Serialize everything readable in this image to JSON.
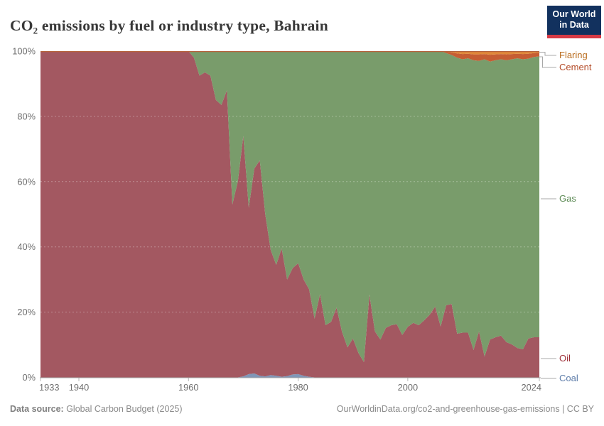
{
  "header": {
    "title": "CO₂ emissions by fuel or industry type, Bahrain"
  },
  "logo": {
    "line1": "Our World",
    "line2": "in Data",
    "bg_color": "#12315e",
    "bar_color": "#d73a45"
  },
  "footer": {
    "source_label": "Data source:",
    "source_value": " Global Carbon Budget (2025)",
    "credit": "OurWorldinData.org/co2-and-greenhouse-gas-emissions | CC BY"
  },
  "chart_data": {
    "type": "area",
    "stacked": "percent",
    "title": "CO₂ emissions by fuel or industry type, Bahrain",
    "xlabel": "",
    "ylabel": "",
    "ylim": [
      0,
      100
    ],
    "grid_values": [
      20,
      40,
      60,
      80
    ],
    "legend_position": "right",
    "xticks": [
      1933,
      1940,
      1960,
      1980,
      2000,
      2024
    ],
    "yticks": [
      {
        "label": "0%",
        "value": 0
      },
      {
        "label": "20%",
        "value": 20
      },
      {
        "label": "40%",
        "value": 40
      },
      {
        "label": "60%",
        "value": 60
      },
      {
        "label": "80%",
        "value": 80
      },
      {
        "label": "100%",
        "value": 100
      }
    ],
    "x": [
      1933,
      1934,
      1935,
      1936,
      1937,
      1938,
      1939,
      1940,
      1941,
      1942,
      1943,
      1944,
      1945,
      1946,
      1947,
      1948,
      1949,
      1950,
      1951,
      1952,
      1953,
      1954,
      1955,
      1956,
      1957,
      1958,
      1959,
      1960,
      1961,
      1962,
      1963,
      1964,
      1965,
      1966,
      1967,
      1968,
      1969,
      1970,
      1971,
      1972,
      1973,
      1974,
      1975,
      1976,
      1977,
      1978,
      1979,
      1980,
      1981,
      1982,
      1983,
      1984,
      1985,
      1986,
      1987,
      1988,
      1989,
      1990,
      1991,
      1992,
      1993,
      1994,
      1995,
      1996,
      1997,
      1998,
      1999,
      2000,
      2001,
      2002,
      2003,
      2004,
      2005,
      2006,
      2007,
      2008,
      2009,
      2010,
      2011,
      2012,
      2013,
      2014,
      2015,
      2016,
      2017,
      2018,
      2019,
      2020,
      2021,
      2022,
      2023,
      2024
    ],
    "series": [
      {
        "name": "Coal",
        "color": "#8096b7",
        "label_color": "#5d7ca9",
        "values": [
          0,
          0,
          0,
          0,
          0,
          0,
          0,
          0,
          0,
          0,
          0,
          0,
          0,
          0,
          0,
          0,
          0,
          0,
          0,
          0,
          0,
          0,
          0,
          0,
          0,
          0,
          0,
          0,
          0,
          0,
          0,
          0,
          0,
          0,
          0,
          0,
          0,
          0.3,
          1,
          1.2,
          0.5,
          0.3,
          0.7,
          0.5,
          0.2,
          0.4,
          0.9,
          1,
          0.5,
          0.2,
          0,
          0,
          0,
          0,
          0,
          0,
          0,
          0,
          0,
          0,
          0,
          0,
          0,
          0,
          0,
          0,
          0,
          0,
          0,
          0,
          0,
          0,
          0,
          0,
          0,
          0,
          0,
          0,
          0,
          0,
          0,
          0,
          0,
          0,
          0,
          0,
          0,
          0,
          0,
          0,
          0,
          0
        ]
      },
      {
        "name": "Oil",
        "color": "#a35861",
        "label_color": "#9e3038",
        "values": [
          100,
          100,
          100,
          100,
          100,
          100,
          100,
          100,
          100,
          100,
          100,
          100,
          100,
          100,
          100,
          100,
          100,
          100,
          100,
          100,
          100,
          100,
          100,
          100,
          100,
          100,
          100,
          100,
          98,
          92.5,
          93.5,
          92.5,
          85,
          83.5,
          88,
          53,
          60,
          73.7,
          51,
          62.8,
          66,
          49.7,
          38.3,
          34,
          39.3,
          29.6,
          32.6,
          34,
          29.5,
          26.8,
          18,
          25.5,
          16,
          17,
          21.4,
          14,
          9.2,
          11.9,
          7.5,
          4.7,
          25.4,
          14.1,
          11.6,
          15.2,
          16,
          16.3,
          13,
          15.5,
          16.7,
          16,
          17.5,
          19.2,
          21.7,
          15.6,
          22.1,
          22.5,
          13.4,
          13.7,
          13.7,
          8.4,
          14.1,
          6.4,
          11.6,
          12.3,
          12.8,
          10.8,
          10.1,
          9,
          8.6,
          11.9,
          12.3,
          12.3
        ]
      },
      {
        "name": "Gas",
        "color": "#799c6b",
        "label_color": "#5c8a54",
        "values": [
          0,
          0,
          0,
          0,
          0,
          0,
          0,
          0,
          0,
          0,
          0,
          0,
          0,
          0,
          0,
          0,
          0,
          0,
          0,
          0,
          0,
          0,
          0,
          0,
          0,
          0,
          0,
          0,
          2,
          7.5,
          6.5,
          7.5,
          15,
          16.5,
          12,
          47,
          40,
          26,
          48,
          36,
          33.5,
          50,
          61,
          65.5,
          60.5,
          70,
          66.5,
          65,
          70,
          73,
          82,
          74.5,
          84,
          83,
          78.6,
          86,
          90.8,
          88.1,
          92.5,
          95.3,
          74.6,
          85.9,
          88.4,
          84.8,
          84,
          83.7,
          87,
          84.5,
          83.3,
          84,
          82.5,
          80.8,
          78.3,
          84.4,
          77.3,
          76.3,
          84.6,
          83.8,
          84.1,
          88.8,
          82.9,
          91.1,
          85.2,
          84.9,
          84.7,
          86.4,
          87.4,
          88.8,
          88.9,
          85.8,
          85.9,
          86.1
        ]
      },
      {
        "name": "Cement",
        "color": "#c65d33",
        "label_color": "#b44c29",
        "values": [
          0,
          0,
          0,
          0,
          0,
          0,
          0,
          0,
          0,
          0,
          0,
          0,
          0,
          0,
          0,
          0,
          0,
          0,
          0,
          0,
          0,
          0,
          0,
          0,
          0,
          0,
          0,
          0,
          0,
          0,
          0,
          0,
          0,
          0,
          0,
          0,
          0,
          0,
          0,
          0,
          0,
          0,
          0,
          0,
          0,
          0,
          0,
          0,
          0,
          0,
          0,
          0,
          0,
          0,
          0,
          0,
          0,
          0,
          0,
          0,
          0,
          0,
          0,
          0,
          0,
          0,
          0,
          0,
          0,
          0,
          0,
          0,
          0,
          0,
          0.4,
          0.8,
          1.3,
          1.6,
          1.4,
          1.8,
          2,
          1.6,
          2.1,
          1.8,
          1.6,
          1.8,
          1.6,
          1.4,
          1.6,
          1.5,
          1.2,
          1.1
        ]
      },
      {
        "name": "Flaring",
        "color": "#e0883a",
        "label_color": "#b96b1c",
        "values": [
          0,
          0,
          0,
          0,
          0,
          0,
          0,
          0,
          0,
          0,
          0,
          0,
          0,
          0,
          0,
          0,
          0,
          0,
          0,
          0,
          0,
          0,
          0,
          0,
          0,
          0,
          0,
          0,
          0,
          0,
          0,
          0,
          0,
          0,
          0,
          0,
          0,
          0,
          0,
          0,
          0,
          0,
          0,
          0,
          0,
          0,
          0,
          0,
          0,
          0,
          0,
          0,
          0,
          0,
          0,
          0,
          0,
          0,
          0,
          0,
          0,
          0,
          0,
          0,
          0,
          0,
          0,
          0,
          0,
          0,
          0,
          0,
          0,
          0,
          0.2,
          0.4,
          0.7,
          0.9,
          0.8,
          1,
          1,
          0.9,
          1.1,
          1,
          0.9,
          1,
          0.9,
          0.8,
          0.9,
          0.8,
          0.6,
          0.5
        ]
      }
    ]
  }
}
